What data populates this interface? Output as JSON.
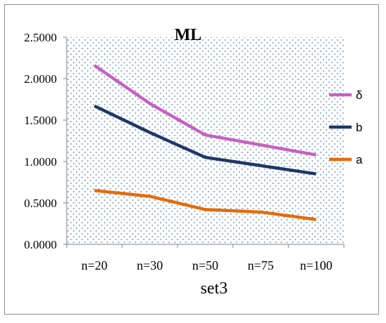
{
  "chart_data": {
    "type": "line",
    "title": "ML",
    "xlabel": "set3",
    "ylabel": "",
    "categories": [
      "n=20",
      "n=30",
      "n=50",
      "n=75",
      "n=100"
    ],
    "ylim": [
      0,
      2.5
    ],
    "yticks": [
      "0.0000",
      "0.5000",
      "1.0000",
      "1.5000",
      "2.0000",
      "2.5000"
    ],
    "series": [
      {
        "name": "δ",
        "color": "#c661c4",
        "values": [
          2.16,
          1.7,
          1.32,
          1.2,
          1.08
        ]
      },
      {
        "name": "b",
        "color": "#1f3864",
        "values": [
          1.67,
          1.35,
          1.05,
          0.95,
          0.85
        ]
      },
      {
        "name": "a",
        "color": "#e46c0a",
        "values": [
          0.65,
          0.58,
          0.42,
          0.39,
          0.3
        ]
      }
    ],
    "grid": false,
    "legend_position": "right",
    "plot_background": "dotted",
    "dot_color": "#4f81bd"
  }
}
